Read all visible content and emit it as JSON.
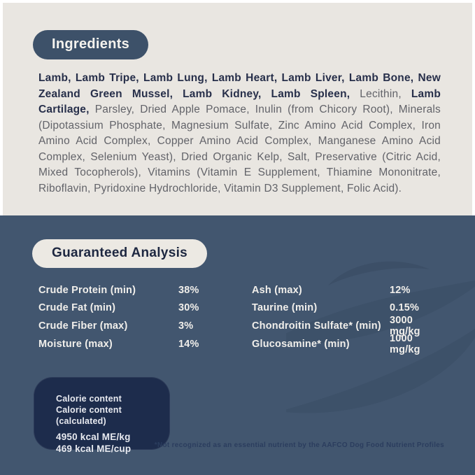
{
  "colors": {
    "cream_bg": "#e9e6e1",
    "slate_blue_bg": "#42566f",
    "dark_navy_pill": "#3d5169",
    "darker_navy_box": "#1d2c4c",
    "bold_ingredient_text": "#272f4a",
    "regular_ingredient_text": "#626369",
    "light_table_text": "#f1efeb",
    "footnote_text": "#2b3d5e"
  },
  "ingredients": {
    "title": "Ingredients",
    "segments": [
      {
        "text": "Lamb, Lamb Tripe, Lamb Lung, Lamb Heart, Lamb Liver, Lamb Bone, New Zealand Green Mussel, Lamb Kidney, Lamb Spleen, ",
        "bold": true
      },
      {
        "text": "Lecithin, ",
        "bold": false
      },
      {
        "text": "Lamb Cartilage, ",
        "bold": true
      },
      {
        "text": "Parsley, Dried Apple Pomace, Inulin (from Chicory Root), Minerals (Dipotassium Phosphate, Magnesium Sulfate, Zinc Amino Acid Complex, Iron Amino Acid Complex, Copper Amino Acid Complex, Manganese Amino Acid Complex, Selenium Yeast), Dried Organic Kelp, Salt, Preservative (Citric Acid, Mixed Tocopherols), Vitamins (Vitamin E Supplement, Thiamine Mononitrate, Riboflavin, Pyridoxine Hydrochloride, Vitamin D3 Supplement, Folic Acid).",
        "bold": false
      }
    ]
  },
  "analysis": {
    "title": "Guaranteed Analysis",
    "left_rows": [
      {
        "label": "Crude Protein (min)",
        "value": "38%"
      },
      {
        "label": "Crude Fat (min)",
        "value": "30%"
      },
      {
        "label": "Crude Fiber (max)",
        "value": "3%"
      },
      {
        "label": "Moisture (max)",
        "value": "14%"
      }
    ],
    "right_rows": [
      {
        "label": "Ash (max)",
        "value": "12%"
      },
      {
        "label": "Taurine (min)",
        "value": "0.15%"
      },
      {
        "label": "Chondroitin Sulfate* (min)",
        "value": "3000 mg/kg"
      },
      {
        "label": "Glucosamine* (min)",
        "value": "1000 mg/kg"
      }
    ],
    "footnote": "*Not recognized as an essential nutrient by the AAFCO Dog Food Nutrient Profiles"
  },
  "calories": {
    "heading": "Calorie content",
    "heading_calculated": "Calorie content (calculated)",
    "me_per_kg": "4950 kcal ME/kg",
    "me_per_cup": "469 kcal ME/cup"
  }
}
